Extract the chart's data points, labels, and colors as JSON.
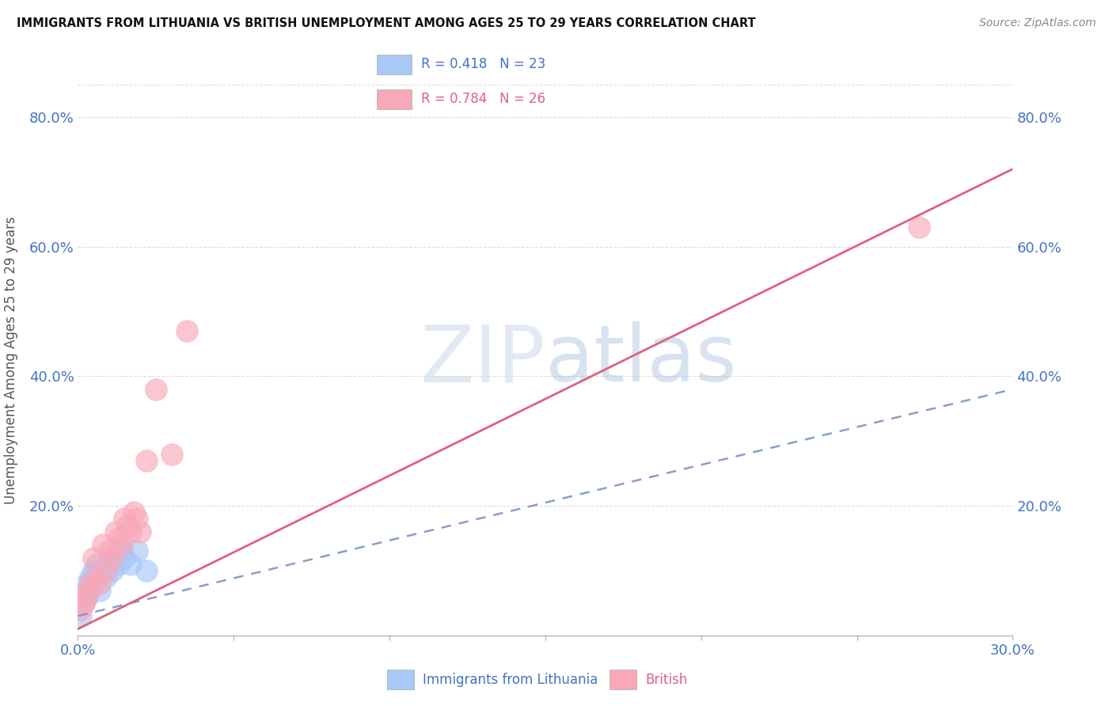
{
  "title": "IMMIGRANTS FROM LITHUANIA VS BRITISH UNEMPLOYMENT AMONG AGES 25 TO 29 YEARS CORRELATION CHART",
  "source": "Source: ZipAtlas.com",
  "ylabel": "Unemployment Among Ages 25 to 29 years",
  "xlim": [
    0.0,
    0.3
  ],
  "ylim": [
    0.0,
    0.85
  ],
  "xticks": [
    0.0,
    0.05,
    0.1,
    0.15,
    0.2,
    0.25,
    0.3
  ],
  "xticklabels": [
    "0.0%",
    "",
    "",
    "",
    "",
    "",
    "30.0%"
  ],
  "yticks": [
    0.0,
    0.2,
    0.4,
    0.6,
    0.8
  ],
  "yticklabels": [
    "",
    "20.0%",
    "40.0%",
    "60.0%",
    "80.0%"
  ],
  "blue_R": 0.418,
  "blue_N": 23,
  "pink_R": 0.784,
  "pink_N": 26,
  "blue_color": "#a8c8f8",
  "pink_color": "#f8a8b8",
  "blue_line_color": "#7090c0",
  "pink_line_color": "#e06080",
  "grid_color": "#dddddd",
  "text_color": "#4472c4",
  "watermark_zip": "ZIP",
  "watermark_atlas": "atlas",
  "blue_dots_x": [
    0.001,
    0.002,
    0.003,
    0.003,
    0.004,
    0.004,
    0.005,
    0.005,
    0.006,
    0.006,
    0.007,
    0.008,
    0.009,
    0.01,
    0.01,
    0.011,
    0.012,
    0.013,
    0.014,
    0.015,
    0.017,
    0.019,
    0.022
  ],
  "blue_dots_y": [
    0.03,
    0.05,
    0.06,
    0.08,
    0.07,
    0.09,
    0.08,
    0.1,
    0.09,
    0.11,
    0.07,
    0.1,
    0.09,
    0.11,
    0.12,
    0.1,
    0.12,
    0.11,
    0.13,
    0.12,
    0.11,
    0.13,
    0.1
  ],
  "pink_dots_x": [
    0.001,
    0.002,
    0.003,
    0.003,
    0.004,
    0.005,
    0.006,
    0.007,
    0.008,
    0.009,
    0.01,
    0.011,
    0.012,
    0.013,
    0.014,
    0.015,
    0.016,
    0.017,
    0.018,
    0.019,
    0.02,
    0.022,
    0.025,
    0.03,
    0.035,
    0.27
  ],
  "pink_dots_y": [
    0.04,
    0.05,
    0.06,
    0.07,
    0.08,
    0.12,
    0.09,
    0.08,
    0.14,
    0.1,
    0.13,
    0.12,
    0.16,
    0.15,
    0.14,
    0.18,
    0.17,
    0.16,
    0.19,
    0.18,
    0.16,
    0.27,
    0.38,
    0.28,
    0.47,
    0.63
  ],
  "blue_line_x0": 0.0,
  "blue_line_y0": 0.03,
  "blue_line_x1": 0.3,
  "blue_line_y1": 0.38,
  "pink_line_x0": 0.0,
  "pink_line_y0": 0.01,
  "pink_line_x1": 0.3,
  "pink_line_y1": 0.72
}
